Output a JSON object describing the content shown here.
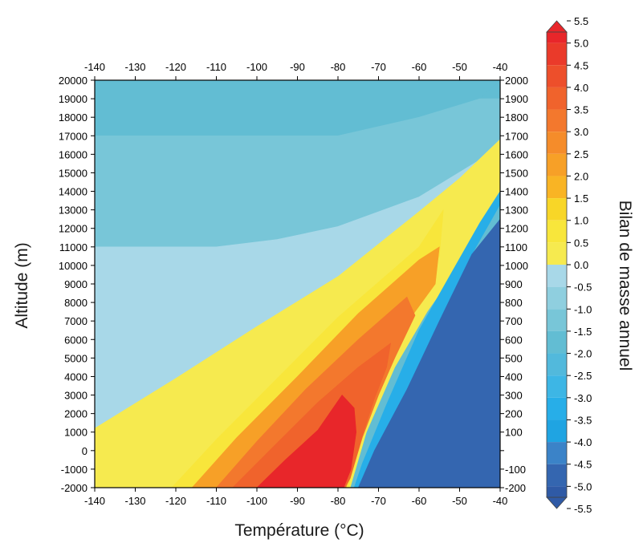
{
  "chart_data": {
    "type": "heatmap",
    "title": "",
    "xlabel": "Température (°C)",
    "ylabel": "Altitude (m)",
    "colorbar_label": "Bilan de masse annuel",
    "x_ticks": [
      -140,
      -130,
      -120,
      -110,
      -100,
      -90,
      -80,
      -70,
      -60,
      -50,
      -40
    ],
    "y_ticks": [
      20000,
      19000,
      18000,
      17000,
      16000,
      15000,
      14000,
      13000,
      12000,
      11000,
      10000,
      9000,
      8000,
      7000,
      6000,
      5000,
      4000,
      3000,
      2000,
      1000,
      0,
      -1000,
      -2000
    ],
    "right_y_ticks": [
      "2000",
      "1900",
      "1800",
      "1700",
      "1600",
      "1500",
      "1400",
      "1300",
      "1200",
      "1100",
      "1000",
      "900",
      "800",
      "700",
      "600",
      "500",
      "400",
      "300",
      "200",
      "100",
      "",
      "-100",
      "-200"
    ],
    "xlim": [
      -140,
      -40
    ],
    "ylim": [
      -2000,
      20000
    ],
    "colorbar_ticks": [
      "5.5",
      "5.0",
      "4.5",
      "4.0",
      "3.5",
      "3.0",
      "2.5",
      "2.0",
      "1.5",
      "1.0",
      "0.5",
      "0.0",
      "-0.5",
      "-1.0",
      "-1.5",
      "-2.0",
      "-2.5",
      "-3.0",
      "-3.5",
      "-4.0",
      "-4.5",
      "-5.0",
      "-5.5"
    ],
    "levels": [
      {
        "range": [
          5.0,
          5.5
        ],
        "color": "#e8262a"
      },
      {
        "range": [
          4.5,
          5.0
        ],
        "color": "#ea3a2a"
      },
      {
        "range": [
          4.0,
          4.5
        ],
        "color": "#ed4f2b"
      },
      {
        "range": [
          3.5,
          4.0
        ],
        "color": "#f0632c"
      },
      {
        "range": [
          3.0,
          3.5
        ],
        "color": "#f3782d"
      },
      {
        "range": [
          2.5,
          3.0
        ],
        "color": "#f58c2a"
      },
      {
        "range": [
          2.0,
          2.5
        ],
        "color": "#f7a027"
      },
      {
        "range": [
          1.5,
          2.0
        ],
        "color": "#f9b424"
      },
      {
        "range": [
          1.0,
          1.5
        ],
        "color": "#f8d627"
      },
      {
        "range": [
          0.5,
          1.0
        ],
        "color": "#f8e63b"
      },
      {
        "range": [
          0.0,
          0.5
        ],
        "color": "#f6ea4f"
      },
      {
        "range": [
          -0.5,
          0.0
        ],
        "color": "#a8d8e8"
      },
      {
        "range": [
          -1.0,
          -0.5
        ],
        "color": "#8fcfdf"
      },
      {
        "range": [
          -1.5,
          -1.0
        ],
        "color": "#78c6d8"
      },
      {
        "range": [
          -2.0,
          -1.5
        ],
        "color": "#62bdd3"
      },
      {
        "range": [
          -2.5,
          -2.0
        ],
        "color": "#52b9dc"
      },
      {
        "range": [
          -3.0,
          -2.5
        ],
        "color": "#3db6e5"
      },
      {
        "range": [
          -3.5,
          -3.0
        ],
        "color": "#27aee8"
      },
      {
        "range": [
          -4.0,
          -3.5
        ],
        "color": "#1fa4e2"
      },
      {
        "range": [
          -4.5,
          -4.0
        ],
        "color": "#3b83c8"
      },
      {
        "range": [
          -5.0,
          -4.5
        ],
        "color": "#3466b0"
      },
      {
        "range": [
          -5.5,
          -5.0
        ],
        "color": "#2f5aa6"
      }
    ],
    "regions": [
      {
        "name": "upper-light-blue",
        "color": "#62bdd3",
        "polygon": [
          [
            -140,
            17000
          ],
          [
            -100,
            17000
          ],
          [
            -80,
            17000
          ],
          [
            -60,
            18000
          ],
          [
            -45,
            19000
          ],
          [
            -40,
            20000
          ],
          [
            -140,
            20000
          ]
        ]
      },
      {
        "name": "cyan-dome",
        "color": "#78c6d8",
        "polygon": [
          [
            -140,
            11000
          ],
          [
            -110,
            11000
          ],
          [
            -95,
            11400
          ],
          [
            -80,
            12100
          ],
          [
            -60,
            13700
          ],
          [
            -45,
            15700
          ],
          [
            -40,
            16800
          ],
          [
            -40,
            19000
          ],
          [
            -45,
            19000
          ],
          [
            -60,
            18000
          ],
          [
            -80,
            17000
          ],
          [
            -140,
            17000
          ]
        ]
      },
      {
        "name": "pale-blue-band",
        "color": "#a8d8e8",
        "polygon": [
          [
            -140,
            1200
          ],
          [
            -120,
            3900
          ],
          [
            -100,
            6700
          ],
          [
            -80,
            9400
          ],
          [
            -60,
            12900
          ],
          [
            -50,
            14700
          ],
          [
            -40,
            16800
          ],
          [
            -45,
            15700
          ],
          [
            -60,
            13700
          ],
          [
            -80,
            12100
          ],
          [
            -95,
            11400
          ],
          [
            -110,
            11000
          ],
          [
            -140,
            11000
          ]
        ]
      },
      {
        "name": "yellow-wedge",
        "color": "#f6ea4f",
        "polygon": [
          [
            -140,
            -2000
          ],
          [
            -140,
            1200
          ],
          [
            -120,
            3900
          ],
          [
            -100,
            6700
          ],
          [
            -80,
            9400
          ],
          [
            -60,
            12900
          ],
          [
            -50,
            14700
          ],
          [
            -40,
            16800
          ],
          [
            -40,
            14000
          ],
          [
            -44,
            12000
          ],
          [
            -50,
            10000
          ],
          [
            -58,
            7500
          ],
          [
            -66,
            4500
          ],
          [
            -73,
            1000
          ],
          [
            -77,
            -2000
          ]
        ]
      },
      {
        "name": "yellow-inner",
        "color": "#f8e63b",
        "polygon": [
          [
            -121,
            -2000
          ],
          [
            -110,
            600
          ],
          [
            -100,
            2800
          ],
          [
            -80,
            7200
          ],
          [
            -60,
            11000
          ],
          [
            -54,
            13000
          ],
          [
            -55,
            10500
          ],
          [
            -60,
            8500
          ],
          [
            -66,
            5500
          ],
          [
            -71,
            2800
          ],
          [
            -75,
            0
          ],
          [
            -77.5,
            -2000
          ]
        ]
      },
      {
        "name": "orange-1",
        "color": "#f7a027",
        "polygon": [
          [
            -116,
            -2000
          ],
          [
            -105,
            700
          ],
          [
            -90,
            4000
          ],
          [
            -75,
            7400
          ],
          [
            -60,
            10300
          ],
          [
            -55,
            11000
          ],
          [
            -56,
            9000
          ],
          [
            -62,
            7200
          ],
          [
            -67,
            4700
          ],
          [
            -72,
            2300
          ],
          [
            -76,
            -500
          ],
          [
            -78,
            -2000
          ]
        ]
      },
      {
        "name": "orange-2",
        "color": "#f3782d",
        "polygon": [
          [
            -110,
            -2000
          ],
          [
            -100,
            500
          ],
          [
            -88,
            3300
          ],
          [
            -75,
            6000
          ],
          [
            -63,
            8300
          ],
          [
            -61,
            7300
          ],
          [
            -66,
            5000
          ],
          [
            -70,
            3000
          ],
          [
            -74,
            700
          ],
          [
            -77,
            -1500
          ],
          [
            -78.2,
            -2000
          ]
        ]
      },
      {
        "name": "orange-3",
        "color": "#f0632c",
        "polygon": [
          [
            -106,
            -2000
          ],
          [
            -96,
            200
          ],
          [
            -85,
            2600
          ],
          [
            -75,
            4500
          ],
          [
            -67,
            5800
          ],
          [
            -68,
            4500
          ],
          [
            -71,
            2800
          ],
          [
            -74,
            800
          ],
          [
            -77,
            -1500
          ],
          [
            -78.4,
            -2000
          ]
        ]
      },
      {
        "name": "red-core",
        "color": "#e8262a",
        "polygon": [
          [
            -100,
            -2000
          ],
          [
            -93,
            -500
          ],
          [
            -85,
            1100
          ],
          [
            -79,
            3000
          ],
          [
            -76,
            2300
          ],
          [
            -75.5,
            1000
          ],
          [
            -76.8,
            -1000
          ],
          [
            -78.6,
            -2000
          ]
        ]
      },
      {
        "name": "blue-transition",
        "color": "#27aee8",
        "polygon": [
          [
            -76,
            -2000
          ],
          [
            -74,
            -700
          ],
          [
            -68,
            2500
          ],
          [
            -60,
            6500
          ],
          [
            -52,
            9600
          ],
          [
            -45,
            12300
          ],
          [
            -40,
            14000
          ],
          [
            -40,
            13300
          ],
          [
            -47,
            10600
          ],
          [
            -55,
            7000
          ],
          [
            -63,
            3300
          ],
          [
            -70,
            300
          ],
          [
            -74,
            -2000
          ]
        ]
      },
      {
        "name": "dark-blue",
        "color": "#3466b0",
        "polygon": [
          [
            -75,
            -2000
          ],
          [
            -71,
            0
          ],
          [
            -63,
            3300
          ],
          [
            -55,
            7000
          ],
          [
            -47,
            10600
          ],
          [
            -40,
            12500
          ],
          [
            -40,
            -2000
          ]
        ]
      }
    ]
  }
}
